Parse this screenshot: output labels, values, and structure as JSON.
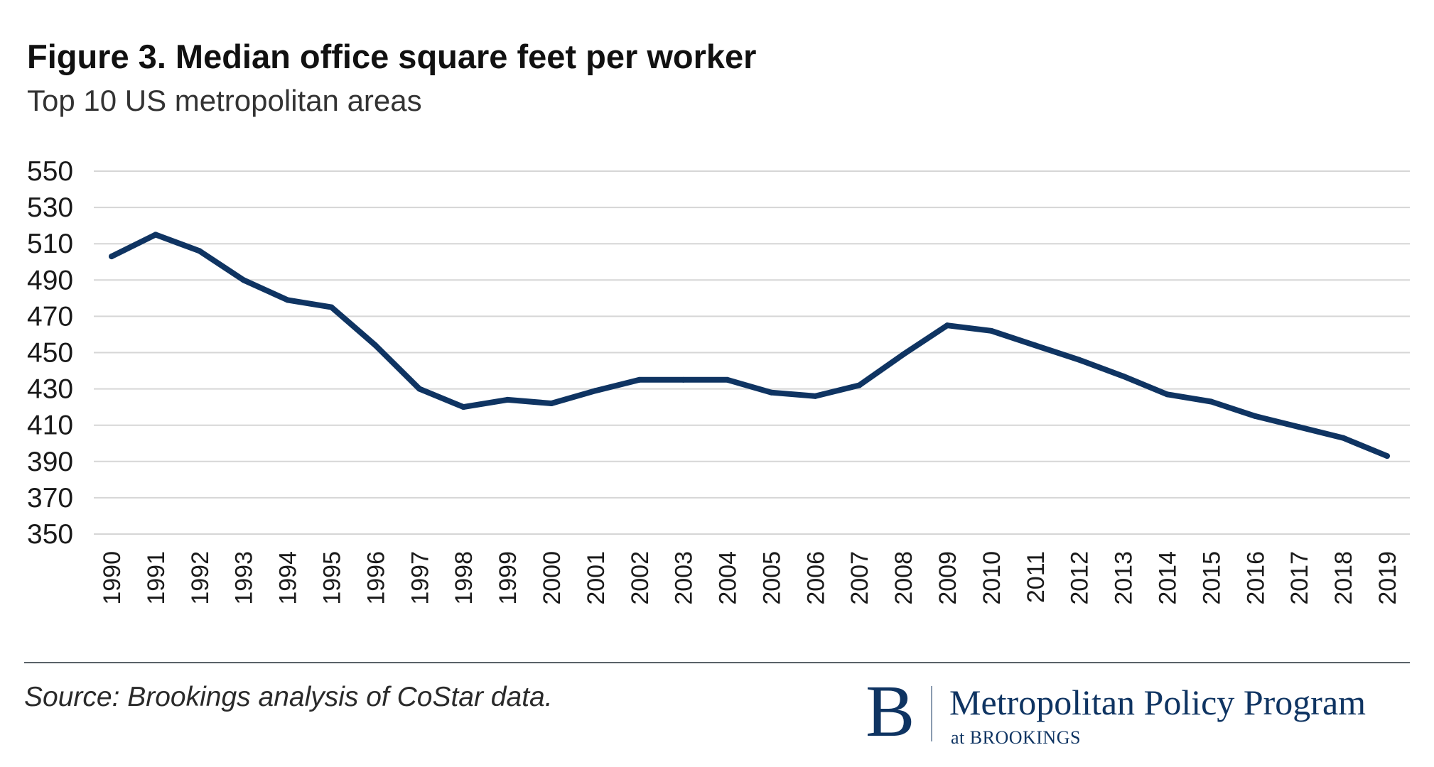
{
  "colors": {
    "line": "#0f3462",
    "grid": "#d6d6d6",
    "brand": "#0f3462"
  },
  "chart_data": {
    "type": "line",
    "title": "Figure 3. Median office square feet per worker",
    "subtitle": "Top 10 US metropolitan areas",
    "xlabel": "",
    "ylabel": "",
    "ylim": [
      350,
      550
    ],
    "yticks": [
      550,
      530,
      510,
      490,
      470,
      450,
      430,
      410,
      390,
      370,
      350
    ],
    "grid": true,
    "x": [
      "1990",
      "1991",
      "1992",
      "1993",
      "1994",
      "1995",
      "1996",
      "1997",
      "1998",
      "1999",
      "2000",
      "2001",
      "2002",
      "2003",
      "2004",
      "2005",
      "2006",
      "2007",
      "2008",
      "2009",
      "2010",
      "2011",
      "2012",
      "2013",
      "2014",
      "2015",
      "2016",
      "2017",
      "2018",
      "2019"
    ],
    "series": [
      {
        "name": "Median office square feet per worker",
        "values": [
          503,
          515,
          506,
          490,
          479,
          475,
          454,
          430,
          420,
          424,
          422,
          429,
          435,
          435,
          435,
          428,
          426,
          432,
          449,
          465,
          462,
          454,
          446,
          437,
          427,
          423,
          415,
          409,
          403,
          393
        ]
      }
    ]
  },
  "footer": {
    "source": "Source: Brookings analysis of CoStar data.",
    "logo_mark": "B",
    "program_name": "Metropolitan Policy Program",
    "at_brookings": "at BROOKINGS"
  }
}
